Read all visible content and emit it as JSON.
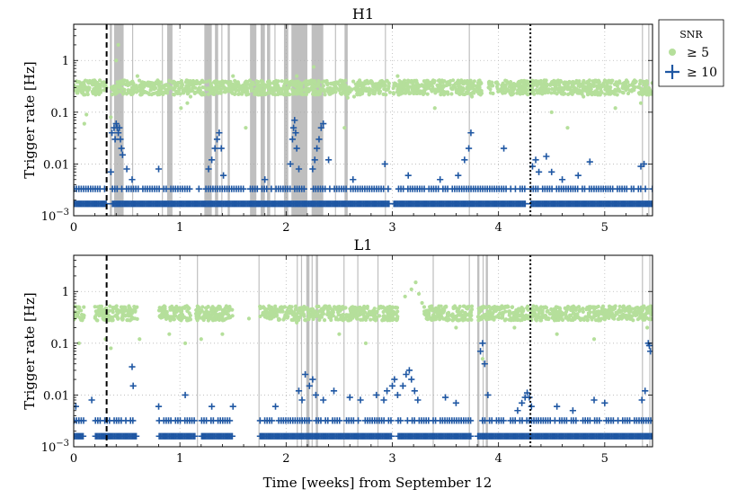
{
  "figure": {
    "xlabel": "Time [weeks] from September 12",
    "ylabel": "Trigger rate [Hz]",
    "legend": {
      "title": "SNR",
      "entries": [
        {
          "label": "≥ 5",
          "color": "#b5df9b",
          "marker": "dot"
        },
        {
          "label": "≥ 10",
          "color": "#1f57a3",
          "marker": "plus"
        }
      ]
    }
  },
  "chart_data": [
    {
      "type": "scatter",
      "title": "H1",
      "xlabel": "Time [weeks] from September 12",
      "ylabel": "Trigger rate [Hz]",
      "xlim": [
        0,
        5.45
      ],
      "ylim": [
        0.001,
        5
      ],
      "yscale": "log",
      "xticks": [
        "0",
        "1",
        "2",
        "3",
        "4",
        "5"
      ],
      "yticks": [
        "10^-3",
        "0.01",
        "0.1",
        "1"
      ],
      "grid": true,
      "legend_position": "outside-top-right",
      "vlines": [
        {
          "x": 0.31,
          "style": "dashed"
        },
        {
          "x": 4.3,
          "style": "dashdot"
        }
      ],
      "vetoed_intervals": [
        [
          0.34,
          0.36
        ],
        [
          0.38,
          0.47
        ],
        [
          0.55,
          0.56
        ],
        [
          0.83,
          0.84
        ],
        [
          0.88,
          0.93
        ],
        [
          1.23,
          1.3
        ],
        [
          1.33,
          1.36
        ],
        [
          1.39,
          1.4
        ],
        [
          1.45,
          1.47
        ],
        [
          1.66,
          1.72
        ],
        [
          1.76,
          1.8
        ],
        [
          1.82,
          1.85
        ],
        [
          1.89,
          1.9
        ],
        [
          1.98,
          2.02
        ],
        [
          2.05,
          2.2
        ],
        [
          2.24,
          2.35
        ],
        [
          2.46,
          2.47
        ],
        [
          2.55,
          2.58
        ],
        [
          2.93,
          2.94
        ],
        [
          3.72,
          3.73
        ],
        [
          5.35,
          5.36
        ],
        [
          5.41,
          5.42
        ]
      ],
      "series": [
        {
          "name": "≥ 5",
          "marker": "dot",
          "color": "#b5df9b",
          "band": {
            "ranges": [
              [
                0,
                0.31
              ],
              [
                0.35,
                2.98
              ],
              [
                3.01,
                3.85
              ],
              [
                3.9,
                4.26
              ],
              [
                4.2,
                5.45
              ]
            ],
            "level": 0.3
          },
          "points": [
            [
              0.1,
              0.06
            ],
            [
              0.12,
              0.09
            ],
            [
              0.35,
              0.08
            ],
            [
              0.4,
              1.0
            ],
            [
              0.42,
              2.0
            ],
            [
              0.44,
              0.25
            ],
            [
              0.6,
              0.5
            ],
            [
              1.01,
              0.12
            ],
            [
              1.07,
              0.15
            ],
            [
              1.1,
              0.2
            ],
            [
              1.5,
              0.5
            ],
            [
              1.62,
              0.05
            ],
            [
              1.96,
              0.4
            ],
            [
              2.1,
              0.5
            ],
            [
              2.14,
              0.3
            ],
            [
              2.26,
              0.75
            ],
            [
              2.55,
              0.05
            ],
            [
              2.58,
              0.19
            ],
            [
              2.64,
              0.2
            ],
            [
              3.05,
              0.5
            ],
            [
              3.3,
              0.4
            ],
            [
              3.4,
              0.12
            ],
            [
              3.75,
              0.2
            ],
            [
              4.5,
              0.1
            ],
            [
              4.65,
              0.05
            ],
            [
              4.8,
              0.2
            ],
            [
              5.1,
              0.12
            ],
            [
              5.34,
              0.15
            ]
          ]
        },
        {
          "name": "≥ 10",
          "marker": "plus",
          "color": "#1f57a3",
          "band_levels": [
            0.0017,
            0.0033
          ],
          "band_ranges": [
            [
              0,
              0.31
            ],
            [
              0.36,
              2.98
            ],
            [
              3.01,
              4.26
            ],
            [
              4.3,
              5.45
            ]
          ],
          "points": [
            [
              0.35,
              0.007
            ],
            [
              0.36,
              0.04
            ],
            [
              0.38,
              0.05
            ],
            [
              0.39,
              0.03
            ],
            [
              0.4,
              0.06
            ],
            [
              0.41,
              0.05
            ],
            [
              0.42,
              0.04
            ],
            [
              0.43,
              0.05
            ],
            [
              0.44,
              0.03
            ],
            [
              0.45,
              0.02
            ],
            [
              0.46,
              0.015
            ],
            [
              0.5,
              0.008
            ],
            [
              0.55,
              0.005
            ],
            [
              0.8,
              0.008
            ],
            [
              1.27,
              0.008
            ],
            [
              1.3,
              0.012
            ],
            [
              1.33,
              0.02
            ],
            [
              1.35,
              0.03
            ],
            [
              1.37,
              0.04
            ],
            [
              1.39,
              0.02
            ],
            [
              1.41,
              0.006
            ],
            [
              1.8,
              0.005
            ],
            [
              2.04,
              0.01
            ],
            [
              2.06,
              0.03
            ],
            [
              2.07,
              0.05
            ],
            [
              2.08,
              0.07
            ],
            [
              2.09,
              0.04
            ],
            [
              2.1,
              0.02
            ],
            [
              2.12,
              0.008
            ],
            [
              2.25,
              0.008
            ],
            [
              2.27,
              0.012
            ],
            [
              2.29,
              0.02
            ],
            [
              2.31,
              0.03
            ],
            [
              2.33,
              0.05
            ],
            [
              2.35,
              0.06
            ],
            [
              2.4,
              0.012
            ],
            [
              2.63,
              0.005
            ],
            [
              2.93,
              0.01
            ],
            [
              3.15,
              0.006
            ],
            [
              3.45,
              0.005
            ],
            [
              3.62,
              0.006
            ],
            [
              3.68,
              0.012
            ],
            [
              3.72,
              0.02
            ],
            [
              3.74,
              0.04
            ],
            [
              4.05,
              0.02
            ],
            [
              4.32,
              0.009
            ],
            [
              4.35,
              0.012
            ],
            [
              4.38,
              0.007
            ],
            [
              4.45,
              0.014
            ],
            [
              4.5,
              0.007
            ],
            [
              4.6,
              0.005
            ],
            [
              4.75,
              0.006
            ],
            [
              4.86,
              0.011
            ],
            [
              5.34,
              0.009
            ],
            [
              5.37,
              0.01
            ]
          ]
        }
      ]
    },
    {
      "type": "scatter",
      "title": "L1",
      "xlabel": "Time [weeks] from September 12",
      "ylabel": "Trigger rate [Hz]",
      "xlim": [
        0,
        5.45
      ],
      "ylim": [
        0.001,
        5
      ],
      "yscale": "log",
      "xticks": [
        "0",
        "1",
        "2",
        "3",
        "4",
        "5"
      ],
      "yticks": [
        "10^-3",
        "0.01",
        "0.1",
        "1"
      ],
      "grid": true,
      "vlines": [
        {
          "x": 0.31,
          "style": "dashed"
        },
        {
          "x": 4.3,
          "style": "dashdot"
        }
      ],
      "vetoed_intervals": [
        [
          1.16,
          1.17
        ],
        [
          1.74,
          1.75
        ],
        [
          2.1,
          2.11
        ],
        [
          2.14,
          2.15
        ],
        [
          2.19,
          2.22
        ],
        [
          2.24,
          2.25
        ],
        [
          2.28,
          2.3
        ],
        [
          2.54,
          2.55
        ],
        [
          2.67,
          2.68
        ],
        [
          2.86,
          2.87
        ],
        [
          3.38,
          3.39
        ],
        [
          3.72,
          3.73
        ],
        [
          3.8,
          3.82
        ],
        [
          3.85,
          3.86
        ],
        [
          3.88,
          3.9
        ],
        [
          5.35,
          5.36
        ],
        [
          5.42,
          5.43
        ]
      ],
      "series": [
        {
          "name": "≥ 5",
          "marker": "dot",
          "color": "#b5df9b",
          "band": {
            "ranges": [
              [
                0,
                0.1
              ],
              [
                0.2,
                0.6
              ],
              [
                0.8,
                1.1
              ],
              [
                1.15,
                1.5
              ],
              [
                1.75,
                3.05
              ],
              [
                3.3,
                3.75
              ],
              [
                3.8,
                5.45
              ]
            ],
            "level": 0.38
          },
          "points": [
            [
              0.05,
              0.1
            ],
            [
              0.3,
              0.12
            ],
            [
              0.35,
              0.08
            ],
            [
              0.62,
              0.12
            ],
            [
              0.9,
              0.15
            ],
            [
              1.05,
              0.1
            ],
            [
              1.2,
              0.12
            ],
            [
              1.4,
              0.15
            ],
            [
              1.65,
              0.3
            ],
            [
              2.1,
              0.25
            ],
            [
              2.5,
              0.15
            ],
            [
              2.75,
              0.1
            ],
            [
              3.12,
              0.8
            ],
            [
              3.18,
              1.1
            ],
            [
              3.22,
              1.5
            ],
            [
              3.25,
              0.9
            ],
            [
              3.28,
              0.6
            ],
            [
              3.6,
              0.2
            ],
            [
              3.85,
              0.05
            ],
            [
              4.15,
              0.2
            ],
            [
              4.55,
              0.15
            ],
            [
              4.9,
              0.12
            ],
            [
              5.4,
              0.2
            ]
          ]
        },
        {
          "name": "≥ 10",
          "marker": "plus",
          "color": "#1f57a3",
          "band_levels": [
            0.0016,
            0.0032
          ],
          "band_ranges": [
            [
              0,
              0.1
            ],
            [
              0.2,
              0.6
            ],
            [
              0.8,
              1.15
            ],
            [
              1.2,
              1.5
            ],
            [
              1.75,
              3.0
            ],
            [
              3.05,
              3.75
            ],
            [
              3.8,
              5.45
            ]
          ],
          "points": [
            [
              0.02,
              0.006
            ],
            [
              0.17,
              0.008
            ],
            [
              0.55,
              0.035
            ],
            [
              0.56,
              0.015
            ],
            [
              0.8,
              0.006
            ],
            [
              1.05,
              0.01
            ],
            [
              1.3,
              0.006
            ],
            [
              1.5,
              0.006
            ],
            [
              1.9,
              0.006
            ],
            [
              2.12,
              0.012
            ],
            [
              2.15,
              0.008
            ],
            [
              2.18,
              0.025
            ],
            [
              2.22,
              0.015
            ],
            [
              2.25,
              0.02
            ],
            [
              2.28,
              0.01
            ],
            [
              2.35,
              0.008
            ],
            [
              2.45,
              0.012
            ],
            [
              2.6,
              0.009
            ],
            [
              2.7,
              0.008
            ],
            [
              2.85,
              0.01
            ],
            [
              2.92,
              0.008
            ],
            [
              2.95,
              0.012
            ],
            [
              3.0,
              0.015
            ],
            [
              3.02,
              0.02
            ],
            [
              3.05,
              0.01
            ],
            [
              3.1,
              0.015
            ],
            [
              3.13,
              0.025
            ],
            [
              3.16,
              0.03
            ],
            [
              3.18,
              0.02
            ],
            [
              3.21,
              0.012
            ],
            [
              3.24,
              0.008
            ],
            [
              3.5,
              0.009
            ],
            [
              3.6,
              0.007
            ],
            [
              3.83,
              0.07
            ],
            [
              3.85,
              0.1
            ],
            [
              3.87,
              0.04
            ],
            [
              3.9,
              0.01
            ],
            [
              4.18,
              0.005
            ],
            [
              4.22,
              0.007
            ],
            [
              4.25,
              0.009
            ],
            [
              4.27,
              0.011
            ],
            [
              4.29,
              0.009
            ],
            [
              4.31,
              0.006
            ],
            [
              4.55,
              0.006
            ],
            [
              4.7,
              0.005
            ],
            [
              4.9,
              0.008
            ],
            [
              5.0,
              0.007
            ],
            [
              5.35,
              0.008
            ],
            [
              5.38,
              0.012
            ],
            [
              5.41,
              0.1
            ],
            [
              5.42,
              0.09
            ],
            [
              5.43,
              0.07
            ]
          ]
        }
      ]
    }
  ]
}
